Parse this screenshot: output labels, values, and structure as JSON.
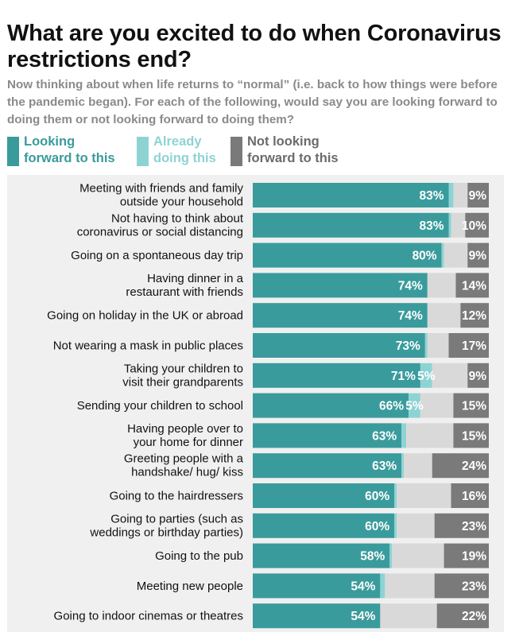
{
  "title": "What are you excited to do when Coronavirus restrictions end?",
  "subtitle": "Now thinking about when life returns to “normal” (i.e. back to how things were before the pandemic began). For each of the following, would say you are looking forward to doing them or not looking forward to doing them?",
  "legend": [
    {
      "label_line1": "Looking",
      "label_line2": "forward to this",
      "color": "#3a9b9c"
    },
    {
      "label_line1": "Already",
      "label_line2": "doing this",
      "color": "#8ed3d4"
    },
    {
      "label_line1": "Not looking",
      "label_line2": "forward to this",
      "color": "#7a7a7a"
    }
  ],
  "colors": {
    "looking": "#3a9b9c",
    "already": "#8ed3d4",
    "neutral": "#d9d9d9",
    "not_looking": "#7a7a7a",
    "panel": "#f0f0f0"
  },
  "chart_data": {
    "type": "bar",
    "orientation": "horizontal",
    "stacked": true,
    "xlim": [
      0,
      100
    ],
    "categories": [
      [
        "Meeting with friends and family",
        "outside your household"
      ],
      [
        "Not having to think about",
        "coronavirus or social distancing"
      ],
      [
        "Going on a spontaneous day trip"
      ],
      [
        "Having dinner in a",
        "restaurant with friends"
      ],
      [
        "Going on holiday in the UK or abroad"
      ],
      [
        "Not wearing a mask in public places"
      ],
      [
        "Taking your children to",
        "visit their grandparents"
      ],
      [
        "Sending your children to school"
      ],
      [
        "Having people over to",
        "your home for dinner"
      ],
      [
        "Greeting people with a",
        "handshake/ hug/ kiss"
      ],
      [
        "Going to the hairdressers"
      ],
      [
        "Going to parties (such as",
        "weddings or birthday parties)"
      ],
      [
        "Going to the pub"
      ],
      [
        "Meeting new people"
      ],
      [
        "Going to indoor cinemas or theatres"
      ]
    ],
    "series": [
      {
        "name": "Looking forward to this",
        "values": [
          83,
          83,
          80,
          74,
          74,
          73,
          71,
          66,
          63,
          63,
          60,
          60,
          58,
          54,
          54
        ],
        "labels": [
          "83%",
          "83%",
          "80%",
          "74%",
          "74%",
          "73%",
          "71%",
          "66%",
          "63%",
          "63%",
          "60%",
          "60%",
          "58%",
          "54%",
          "54%"
        ]
      },
      {
        "name": "Already doing this",
        "values": [
          2,
          1,
          1,
          0,
          0,
          1,
          5,
          5,
          2,
          1,
          1,
          1,
          1,
          2,
          0
        ],
        "labels": [
          "",
          "",
          "",
          "",
          "",
          "",
          "5%",
          "5%",
          "",
          "",
          "",
          "",
          "",
          "",
          ""
        ]
      },
      {
        "values": [
          6,
          6,
          10,
          12,
          14,
          9,
          15,
          14,
          20,
          12,
          23,
          16,
          22,
          21,
          24
        ],
        "labels": [
          "",
          "",
          "",
          "",
          "",
          "",
          "",
          "",
          "",
          "",
          "",
          "",
          "",
          "",
          ""
        ]
      },
      {
        "name": "Not looking forward to this",
        "values": [
          9,
          10,
          9,
          14,
          12,
          17,
          9,
          15,
          15,
          24,
          16,
          23,
          19,
          23,
          22
        ],
        "labels": [
          "9%",
          "10%",
          "9%",
          "14%",
          "12%",
          "17%",
          "9%",
          "15%",
          "15%",
          "24%",
          "16%",
          "23%",
          "19%",
          "23%",
          "22%"
        ]
      }
    ]
  }
}
